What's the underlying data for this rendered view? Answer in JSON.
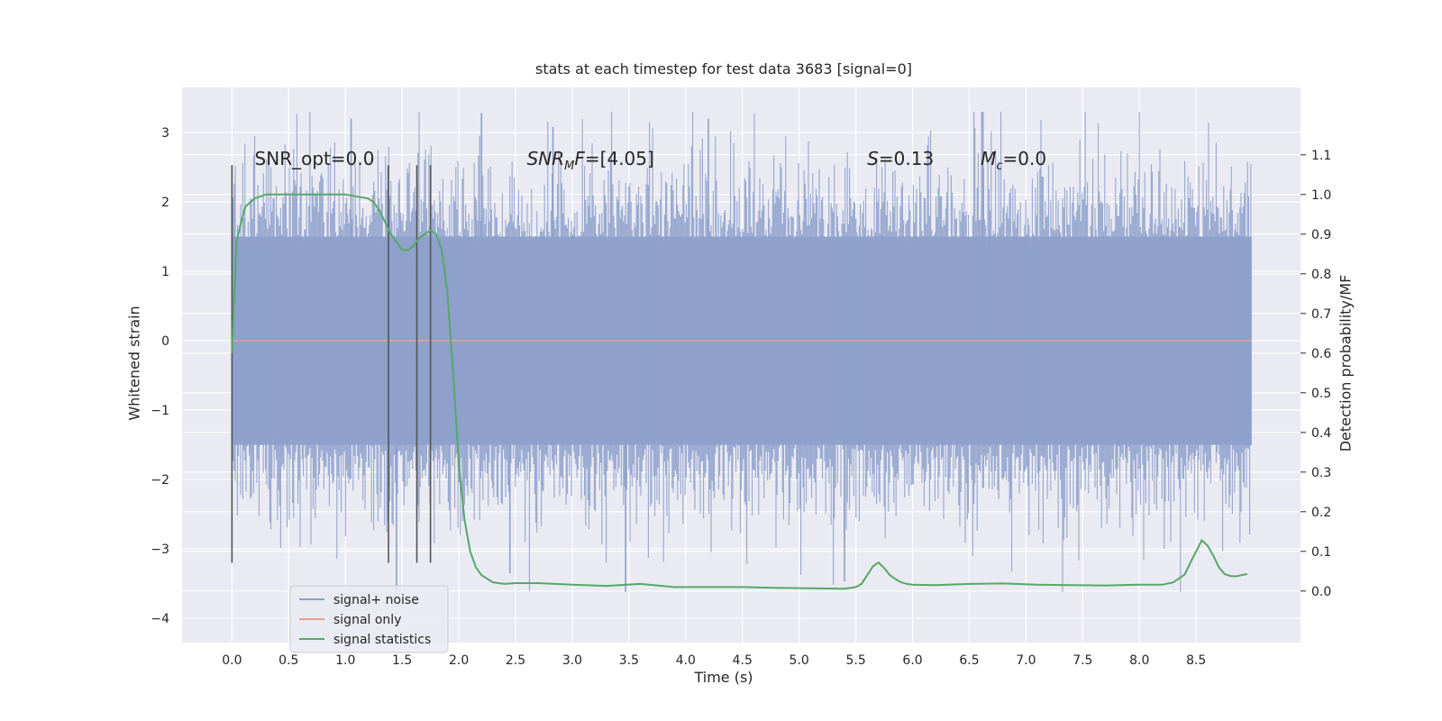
{
  "chart_data": {
    "type": "line",
    "title": "stats at each timestep for test data 3683 [signal=0]",
    "xlabel": "Time (s)",
    "ylabel": "Whitened strain",
    "y2label": "Detection probability/MF",
    "xlim": [
      -0.44,
      9.42
    ],
    "ylim": [
      -4.35,
      3.65
    ],
    "y2lim": [
      -0.13,
      1.27
    ],
    "xticks": [
      "0.0",
      "0.5",
      "1.0",
      "1.5",
      "2.0",
      "2.5",
      "3.0",
      "3.5",
      "4.0",
      "4.5",
      "5.0",
      "5.5",
      "6.0",
      "6.5",
      "7.0",
      "7.5",
      "8.0",
      "8.5"
    ],
    "xtick_values": [
      0.0,
      0.5,
      1.0,
      1.5,
      2.0,
      2.5,
      3.0,
      3.5,
      4.0,
      4.5,
      5.0,
      5.5,
      6.0,
      6.5,
      7.0,
      7.5,
      8.0,
      8.5
    ],
    "yticks": [
      "3",
      "2",
      "1",
      "0",
      "−1",
      "−2",
      "−3",
      "−4"
    ],
    "ytick_values": [
      3,
      2,
      1,
      0,
      -1,
      -2,
      -3,
      -4
    ],
    "y2ticks": [
      "1.1",
      "1.0",
      "0.9",
      "0.8",
      "0.7",
      "0.6",
      "0.5",
      "0.4",
      "0.3",
      "0.2",
      "0.1",
      "0.0"
    ],
    "y2tick_values": [
      1.1,
      1.0,
      0.9,
      0.8,
      0.7,
      0.6,
      0.5,
      0.4,
      0.3,
      0.2,
      0.1,
      0.0
    ],
    "grid": true,
    "legend_position": "lower-left",
    "series": [
      {
        "name": "signal+ noise",
        "kind": "noise_band",
        "axis": "left",
        "color": "#8da0cb",
        "x_range": [
          0.0,
          8.99
        ],
        "core_band": [
          -1.5,
          1.5
        ],
        "peak_min": -3.62,
        "peak_max": 3.3
      },
      {
        "name": "signal only",
        "kind": "line",
        "axis": "left",
        "color": "#e5a28f",
        "x": [
          0.0,
          8.99
        ],
        "y": [
          0.0,
          0.0
        ]
      },
      {
        "name": "signal statistics",
        "kind": "line",
        "axis": "right",
        "color": "#55a868",
        "x": [
          0.0,
          0.04,
          0.08,
          0.12,
          0.2,
          0.3,
          0.5,
          0.8,
          1.0,
          1.2,
          1.25,
          1.3,
          1.35,
          1.4,
          1.45,
          1.5,
          1.55,
          1.6,
          1.65,
          1.7,
          1.75,
          1.8,
          1.85,
          1.9,
          1.95,
          2.0,
          2.05,
          2.1,
          2.15,
          2.2,
          2.3,
          2.4,
          2.5,
          2.7,
          3.0,
          3.3,
          3.6,
          3.9,
          4.2,
          4.5,
          4.8,
          5.1,
          5.4,
          5.5,
          5.55,
          5.6,
          5.65,
          5.7,
          5.75,
          5.8,
          5.85,
          5.9,
          5.95,
          6.0,
          6.2,
          6.5,
          6.8,
          7.1,
          7.4,
          7.7,
          8.0,
          8.2,
          8.3,
          8.4,
          8.45,
          8.5,
          8.55,
          8.6,
          8.65,
          8.7,
          8.75,
          8.8,
          8.85,
          8.9,
          8.95
        ],
        "y": [
          0.6,
          0.88,
          0.93,
          0.97,
          0.99,
          1.0,
          1.0,
          1.0,
          1.0,
          0.99,
          0.98,
          0.96,
          0.93,
          0.9,
          0.88,
          0.86,
          0.86,
          0.87,
          0.89,
          0.9,
          0.91,
          0.9,
          0.86,
          0.75,
          0.55,
          0.32,
          0.18,
          0.1,
          0.06,
          0.04,
          0.022,
          0.018,
          0.02,
          0.02,
          0.016,
          0.013,
          0.018,
          0.01,
          0.01,
          0.01,
          0.008,
          0.007,
          0.006,
          0.01,
          0.018,
          0.04,
          0.062,
          0.072,
          0.058,
          0.04,
          0.03,
          0.022,
          0.018,
          0.016,
          0.015,
          0.018,
          0.019,
          0.016,
          0.015,
          0.014,
          0.016,
          0.016,
          0.022,
          0.042,
          0.072,
          0.1,
          0.128,
          0.115,
          0.09,
          0.06,
          0.043,
          0.038,
          0.037,
          0.04,
          0.043
        ]
      }
    ],
    "vertical_markers": {
      "color": "#555555",
      "x": [
        0.0,
        1.38,
        1.63,
        1.75
      ],
      "y_from": -3.2,
      "y_to": 2.53
    },
    "annotations": [
      {
        "text": "SNR_opt=0.0",
        "x": 0.2,
        "y": 2.53
      },
      {
        "text": "SNR",
        "sub": "M",
        "tail": "F=[4.05]",
        "italic": true,
        "x": 2.6,
        "y": 2.53
      },
      {
        "text": "S",
        "tail": "=0.13",
        "italic": true,
        "x": 5.6,
        "y": 2.53
      },
      {
        "text": "M",
        "sub": "c",
        "tail": "=0.0",
        "italic": true,
        "x": 6.6,
        "y": 2.53
      }
    ]
  }
}
